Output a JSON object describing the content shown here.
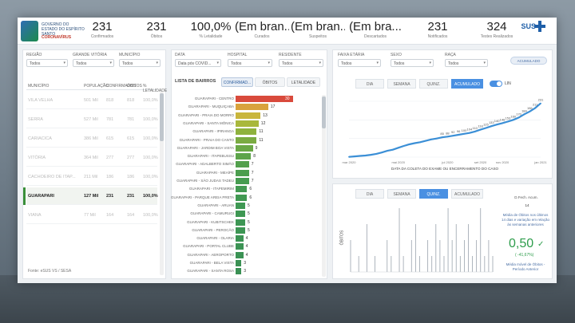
{
  "header": {
    "logo_text": "GOVERNO DO ESTADO DO ESPÍRITO SANTO",
    "logo_sub": "CORONAVÍRUS",
    "kpis": [
      {
        "value": "231",
        "label": "Confirmados"
      },
      {
        "value": "231",
        "label": "Óbitos"
      },
      {
        "value": "100,0%",
        "label": "% Letalidade"
      },
      {
        "value": "(Em bran...",
        "label": "Curados"
      },
      {
        "value": "(Em bran...",
        "label": "Suspeitos"
      },
      {
        "value": "(Em bra...",
        "label": "Descartados"
      },
      {
        "value": "231",
        "label": "Notificados"
      },
      {
        "value": "324",
        "label": "Testes Realizados"
      }
    ],
    "sus_label": "SUS"
  },
  "left_panel": {
    "filters": [
      {
        "label": "REGIÃO",
        "value": "Todos"
      },
      {
        "label": "GRANDE VITÓRIA",
        "value": "Todos"
      },
      {
        "label": "MUNICÍPIO",
        "value": "Todos"
      }
    ],
    "columns": [
      "MUNICÍPIO",
      "POPULAÇÃO",
      "CONFIRMADOS",
      "ÓBITOS",
      "% LETALIDADE"
    ],
    "rows": [
      {
        "name": "VILA VELHA",
        "pop": "501 Mil",
        "conf": "818",
        "obitos": "818",
        "let": "100,0%"
      },
      {
        "name": "SERRA",
        "pop": "527 Mil",
        "conf": "781",
        "obitos": "781",
        "let": "100,0%"
      },
      {
        "name": "CARIACICA",
        "pop": "386 Mil",
        "conf": "615",
        "obitos": "615",
        "let": "100,0%"
      },
      {
        "name": "VITÓRIA",
        "pop": "364 Mil",
        "conf": "277",
        "obitos": "277",
        "let": "100,0%"
      },
      {
        "name": "CACHOEIRO DE ITAP...",
        "pop": "211 Mil",
        "conf": "186",
        "obitos": "186",
        "let": "100,0%"
      },
      {
        "name": "GUARAPARI",
        "pop": "127 Mil",
        "conf": "231",
        "obitos": "231",
        "let": "100,0%"
      },
      {
        "name": "VIANA",
        "pop": "77 Mil",
        "conf": "164",
        "obitos": "164",
        "let": "100,0%"
      }
    ],
    "note": "Fonte: eSUS VS / SESA"
  },
  "middle_panel": {
    "filters": [
      {
        "label": "DATA",
        "value": "Data pós COVID..."
      },
      {
        "label": "HOSPITAL",
        "value": "Todos"
      },
      {
        "label": "RESIDENTE",
        "value": "Todos"
      }
    ],
    "title": "LISTA DE BAIRROS",
    "tabs": [
      "CONFIRMAD...",
      "ÓBITOS",
      "LETALIDADE"
    ],
    "bairros": [
      {
        "name": "GUARAPARI - CENTRO",
        "value": 30,
        "color": "#d94a3c"
      },
      {
        "name": "GUARAPARI - MUQUIÇABA",
        "value": 17,
        "color": "#d9a23c"
      },
      {
        "name": "GUARAPARI - PRAIA DO MORRO",
        "value": 13,
        "color": "#c9b63c"
      },
      {
        "name": "GUARAPARI - SANTA MÔNICA",
        "value": 12,
        "color": "#a9b83c"
      },
      {
        "name": "GUARAPARI - IPIRANGA",
        "value": 11,
        "color": "#8fb23e"
      },
      {
        "name": "GUARAPARI - PRAIA DO CANTO",
        "value": 11,
        "color": "#7aab42"
      },
      {
        "name": "GUARAPARI - JARDIM BOA VISTA",
        "value": 9,
        "color": "#6aa846"
      },
      {
        "name": "GUARAPARI - ITAPEBUSSU",
        "value": 8,
        "color": "#5da44a"
      },
      {
        "name": "GUARAPARI - ADALBERTO SIMÃO",
        "value": 7,
        "color": "#52a04c"
      },
      {
        "name": "GUARAPARI - MEAÍPE",
        "value": 7,
        "color": "#4b9e4e"
      },
      {
        "name": "GUARAPARI - SÃO JUDAS TADEU",
        "value": 7,
        "color": "#469c50"
      },
      {
        "name": "GUARAPARI - ITAPEMIRIM",
        "value": 6,
        "color": "#439a52"
      },
      {
        "name": "GUARAPARI - PARQUE AREIA PRETA",
        "value": 6,
        "color": "#419952"
      },
      {
        "name": "GUARAPARI - ARUAN",
        "value": 5,
        "color": "#3f9853"
      },
      {
        "name": "GUARAPARI - CAMURUGI",
        "value": 5,
        "color": "#3e9753"
      },
      {
        "name": "GUARAPARI - KUBITSCHEK",
        "value": 5,
        "color": "#3d9654"
      },
      {
        "name": "GUARAPARI - PEROCÃO",
        "value": 5,
        "color": "#3d9554"
      },
      {
        "name": "GUARAPARI - OLARIA",
        "value": 4,
        "color": "#3c9454"
      },
      {
        "name": "GUARAPARI - PORTAL CLUBE",
        "value": 4,
        "color": "#3c9354"
      },
      {
        "name": "GUARAPARI - AEROPORTO",
        "value": 4,
        "color": "#3b9254"
      },
      {
        "name": "GUARAPARI - BELA VISTA",
        "value": 3,
        "color": "#3b9154"
      },
      {
        "name": "GUARAPARI - SANTA ROSA",
        "value": 3,
        "color": "#3a9054"
      }
    ]
  },
  "right_top": {
    "filters": [
      {
        "label": "FAIXA ETÁRIA",
        "value": "Todos"
      },
      {
        "label": "SEXO",
        "value": "Todos"
      },
      {
        "label": "RAÇA",
        "value": "Todos"
      }
    ],
    "pill": "ACUMULADO",
    "segments": [
      "DIA",
      "SEMANA",
      "QUINZ.",
      "ACUMULADO"
    ],
    "active_segment": "ACUMULADO",
    "toggle_label": "LIN",
    "chart_data": {
      "type": "line",
      "x": [
        "mar 2020",
        "",
        "",
        "",
        "",
        "",
        "",
        "",
        "",
        "mai 2020",
        "",
        "",
        "",
        "",
        "",
        "",
        "",
        "",
        "jul 2020",
        "",
        "",
        "",
        "",
        "",
        "set 2020",
        "",
        "",
        "",
        "nov 2020",
        "",
        "",
        "",
        "",
        "",
        "",
        "jan 2021"
      ],
      "values": [
        1,
        3,
        5,
        7,
        10,
        14,
        20,
        27,
        32,
        40,
        48,
        55,
        60,
        64,
        70,
        76,
        80,
        85,
        88,
        92,
        96,
        100,
        104,
        110,
        118,
        125,
        133,
        140,
        146,
        153,
        160,
        170,
        184,
        196,
        211,
        231
      ],
      "labels": [
        "",
        "",
        "",
        "",
        "",
        "",
        "",
        "",
        "",
        "",
        "",
        "",
        "",
        "",
        "",
        "",
        "",
        "85",
        "88",
        "92",
        "96",
        "100",
        "104",
        "110",
        "118",
        "125",
        "133",
        "140",
        "146",
        "153",
        "160",
        "170",
        "184",
        "196",
        "211",
        "231"
      ],
      "xlabel": "DATA DA COLETA DO EXAME OU ENCERRAMENTO DO CASO",
      "color": "#3b8fd6"
    }
  },
  "right_bottom": {
    "segments": [
      "DIA",
      "SEMANA",
      "QUINZ.",
      "ACUMULADO"
    ],
    "active_segment": "QUINZ.",
    "side_title": "D.Fech. Acum.",
    "side_value_small": "14",
    "big_value": "0,50",
    "sub_value": "( -41,67%)",
    "side_note_top": "Média de Óbitos nos últimos 14 dias e variação em relação às semanas anteriores",
    "side_note_bottom": "Média móvel de Óbitos - Período Anterior",
    "y_axis_label": "ÓBITOS",
    "spikes": [
      2,
      0,
      1,
      0,
      3,
      0,
      1,
      0,
      0,
      2,
      1,
      0,
      4,
      1,
      0,
      2,
      3,
      1,
      0,
      2,
      1,
      3,
      2,
      1,
      4,
      2,
      3,
      1,
      2,
      3,
      1,
      2,
      4,
      1,
      2,
      1
    ]
  }
}
